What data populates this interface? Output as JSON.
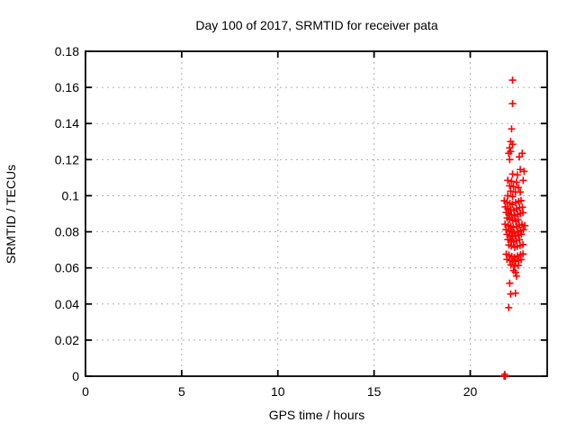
{
  "window": {
    "background": "#ffffff"
  },
  "colors": {
    "marker": "#ff0000",
    "grid": "#b0b0b0",
    "border": "#000000",
    "text": "#000000"
  },
  "chart_data": {
    "type": "scatter",
    "title": "Day 100 of 2017, SRMTID for receiver pata",
    "xlabel": "GPS time / hours",
    "ylabel": "SRMTID / TECUs",
    "xlim": [
      0,
      24
    ],
    "ylim": [
      0,
      0.18
    ],
    "grid": true,
    "legend": "none",
    "marker": {
      "shape": "plus",
      "color": "#ff0000",
      "size": 4
    },
    "xticks": {
      "values": [
        0,
        5,
        10,
        15,
        20
      ],
      "labels": [
        "0",
        "5",
        "10",
        "15",
        "20"
      ]
    },
    "yticks": {
      "values": [
        0,
        0.02,
        0.04,
        0.06,
        0.08,
        0.1,
        0.12,
        0.14,
        0.16,
        0.18
      ],
      "labels": [
        "0",
        "0.02",
        "0.04",
        "0.06",
        "0.08",
        "0.1",
        "0.12",
        "0.14",
        "0.16",
        "0.18"
      ]
    },
    "series": [
      {
        "name": "SRMTID",
        "points": [
          [
            22.2,
            0.164
          ],
          [
            22.2,
            0.151
          ],
          [
            22.15,
            0.137
          ],
          [
            22.1,
            0.13
          ],
          [
            22.2,
            0.1285
          ],
          [
            22.05,
            0.1265
          ],
          [
            22.1,
            0.1245
          ],
          [
            22.0,
            0.1235
          ],
          [
            22.7,
            0.1235
          ],
          [
            22.55,
            0.1215
          ],
          [
            22.05,
            0.12
          ],
          [
            22.6,
            0.1145
          ],
          [
            22.8,
            0.1135
          ],
          [
            22.2,
            0.112
          ],
          [
            22.45,
            0.1115
          ],
          [
            21.95,
            0.1085
          ],
          [
            22.75,
            0.1085
          ],
          [
            22.15,
            0.108
          ],
          [
            22.4,
            0.1075
          ],
          [
            22.05,
            0.1055
          ],
          [
            22.25,
            0.105
          ],
          [
            22.5,
            0.1045
          ],
          [
            22.1,
            0.1025
          ],
          [
            22.35,
            0.102
          ],
          [
            22.6,
            0.102
          ],
          [
            21.95,
            0.1
          ],
          [
            22.2,
            0.0995
          ],
          [
            21.77,
            0.0972
          ],
          [
            21.91,
            0.0964
          ],
          [
            22.06,
            0.0958
          ],
          [
            22.19,
            0.0951
          ],
          [
            22.36,
            0.0962
          ],
          [
            22.52,
            0.0968
          ],
          [
            22.64,
            0.0973
          ],
          [
            21.82,
            0.0938
          ],
          [
            21.96,
            0.0929
          ],
          [
            22.09,
            0.0922
          ],
          [
            22.27,
            0.0918
          ],
          [
            22.41,
            0.0927
          ],
          [
            22.56,
            0.0933
          ],
          [
            22.71,
            0.0936
          ],
          [
            21.87,
            0.0907
          ],
          [
            22.01,
            0.0899
          ],
          [
            22.14,
            0.0893
          ],
          [
            22.31,
            0.0888
          ],
          [
            22.46,
            0.0896
          ],
          [
            22.61,
            0.0902
          ],
          [
            22.74,
            0.0906
          ],
          [
            21.92,
            0.0877
          ],
          [
            22.04,
            0.0869
          ],
          [
            22.21,
            0.0863
          ],
          [
            22.37,
            0.0858
          ],
          [
            22.49,
            0.0867
          ],
          [
            21.81,
            0.0842
          ],
          [
            21.97,
            0.0836
          ],
          [
            22.11,
            0.0831
          ],
          [
            22.24,
            0.0824
          ],
          [
            22.42,
            0.0829
          ],
          [
            22.54,
            0.0837
          ],
          [
            22.69,
            0.0841
          ],
          [
            22.84,
            0.0834
          ],
          [
            21.86,
            0.0812
          ],
          [
            22.02,
            0.0806
          ],
          [
            22.16,
            0.0799
          ],
          [
            22.29,
            0.0794
          ],
          [
            22.47,
            0.0801
          ],
          [
            22.62,
            0.0807
          ],
          [
            22.76,
            0.0811
          ],
          [
            21.91,
            0.0786
          ],
          [
            22.06,
            0.0779
          ],
          [
            22.19,
            0.0774
          ],
          [
            22.34,
            0.0777
          ],
          [
            22.51,
            0.0782
          ],
          [
            22.66,
            0.0786
          ],
          [
            21.96,
            0.0757
          ],
          [
            22.12,
            0.0749
          ],
          [
            22.26,
            0.0744
          ],
          [
            22.39,
            0.0751
          ],
          [
            22.56,
            0.0756
          ],
          [
            22.01,
            0.0727
          ],
          [
            22.14,
            0.0721
          ],
          [
            22.31,
            0.0714
          ],
          [
            22.44,
            0.0719
          ],
          [
            22.59,
            0.0724
          ],
          [
            22.74,
            0.0729
          ],
          [
            21.87,
            0.0676
          ],
          [
            22.01,
            0.0671
          ],
          [
            22.16,
            0.0664
          ],
          [
            22.29,
            0.0659
          ],
          [
            22.46,
            0.0666
          ],
          [
            22.61,
            0.0672
          ],
          [
            22.74,
            0.0677
          ],
          [
            21.91,
            0.0647
          ],
          [
            22.06,
            0.0641
          ],
          [
            22.21,
            0.0634
          ],
          [
            22.36,
            0.0637
          ],
          [
            22.51,
            0.0642
          ],
          [
            22.64,
            0.0646
          ],
          [
            22.11,
            0.0616
          ],
          [
            22.31,
            0.0609
          ],
          [
            22.49,
            0.0614
          ],
          [
            22.25,
            0.0585
          ],
          [
            22.35,
            0.0575
          ],
          [
            22.4,
            0.0555
          ],
          [
            22.05,
            0.0515
          ],
          [
            22.1,
            0.0455
          ],
          [
            22.35,
            0.046
          ],
          [
            22.0,
            0.038
          ],
          [
            21.76,
            0.0
          ],
          [
            21.79,
            0.0
          ],
          [
            21.82,
            0.0
          ],
          [
            21.79,
            0.001
          ]
        ]
      }
    ]
  }
}
